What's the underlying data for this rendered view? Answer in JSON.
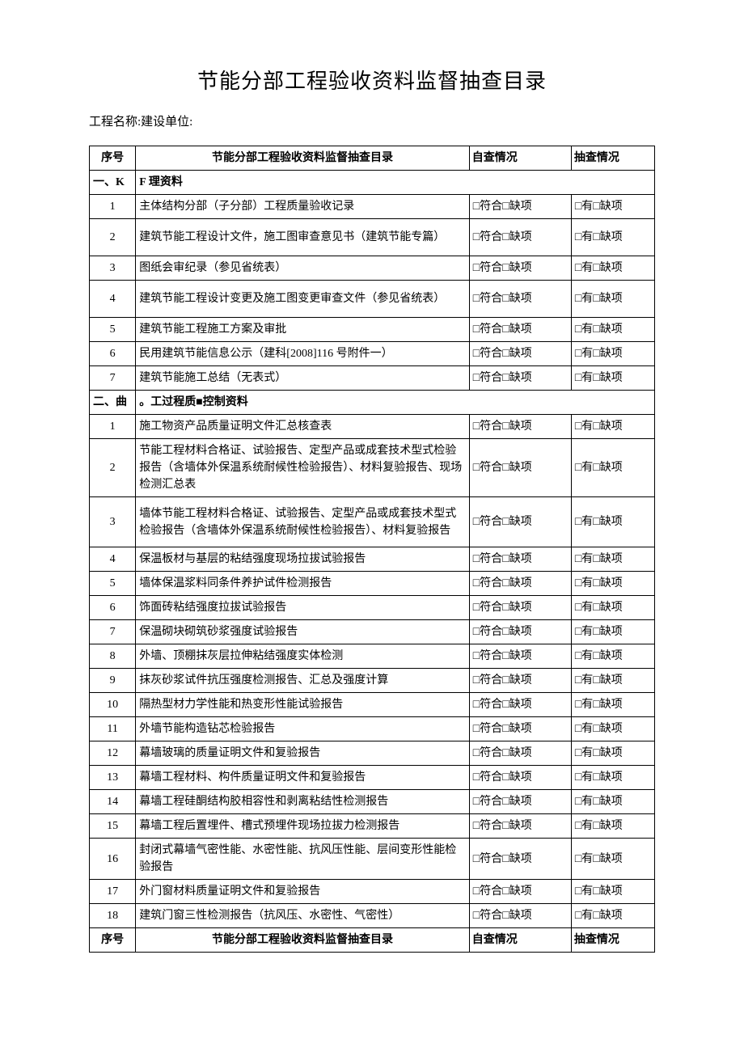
{
  "title": "节能分部工程验收资料监督抽查目录",
  "subtitle": "工程名称:建设单位:",
  "header": {
    "seq": "序号",
    "item": "节能分部工程验收资料监督抽查目录",
    "self": "自查情况",
    "spot": "抽查情况"
  },
  "self_text": "□符合□缺项",
  "spot_text": "□有□缺项",
  "section1": {
    "a": "一、K",
    "b": "F 理资料"
  },
  "section2": {
    "a": "二、曲",
    "b": "。工过程质■控制资料"
  },
  "s1_rows": [
    {
      "n": "1",
      "t": "主体结构分部（子分部）工程质量验收记录",
      "h": ""
    },
    {
      "n": "2",
      "t": "建筑节能工程设计文件，施工图审查意见书（建筑节能专篇）",
      "h": "tall"
    },
    {
      "n": "3",
      "t": "图纸会审纪录（参见省统表）",
      "h": ""
    },
    {
      "n": "4",
      "t": "建筑节能工程设计变更及施工图变更审查文件（参见省统表）",
      "h": "tall"
    },
    {
      "n": "5",
      "t": "建筑节能工程施工方案及审批",
      "h": ""
    },
    {
      "n": "6",
      "t": "民用建筑节能信息公示（建科[2008]116 号附件一）",
      "h": ""
    },
    {
      "n": "7",
      "t": "建筑节能施工总结（无表式）",
      "h": ""
    }
  ],
  "s2_rows": [
    {
      "n": "1",
      "t": "施工物资产品质量证明文件汇总核查表",
      "h": ""
    },
    {
      "n": "2",
      "t": "节能工程材料合格证、试验报告、定型产品或成套技术型式检验报告（含墙体外保温系统耐候性检验报告）、材料复验报告、现场检测汇总表",
      "h": "vtall"
    },
    {
      "n": "3",
      "t": "墙体节能工程材料合格证、试验报告、定型产品或成套技术型式检验报告（含墙体外保温系统耐候性检验报告）、材料复验报告",
      "h": "vtall"
    },
    {
      "n": "4",
      "t": "保温板材与基层的粘结强度现场拉拔试验报告",
      "h": ""
    },
    {
      "n": "5",
      "t": "墙体保温浆料同条件养护试件检测报告",
      "h": ""
    },
    {
      "n": "6",
      "t": "饰面砖粘结强度拉拔试验报告",
      "h": ""
    },
    {
      "n": "7",
      "t": "保温砌块砌筑砂浆强度试验报告",
      "h": ""
    },
    {
      "n": "8",
      "t": "外墙、顶棚抹灰层拉伸粘结强度实体检测",
      "h": ""
    },
    {
      "n": "9",
      "t": "抹灰砂浆试件抗压强度检测报告、汇总及强度计算",
      "h": ""
    },
    {
      "n": "10",
      "t": "隔热型材力学性能和热变形性能试验报告",
      "h": ""
    },
    {
      "n": "11",
      "t": "外墙节能构造钻芯检验报告",
      "h": ""
    },
    {
      "n": "12",
      "t": "幕墙玻璃的质量证明文件和复验报告",
      "h": ""
    },
    {
      "n": "13",
      "t": "幕墙工程材料、构件质量证明文件和复验报告",
      "h": ""
    },
    {
      "n": "14",
      "t": "幕墙工程硅酮结构胶相容性和剥离粘结性检测报告",
      "h": ""
    },
    {
      "n": "15",
      "t": "幕墙工程后置埋件、槽式预埋件现场拉拔力检测报告",
      "h": ""
    },
    {
      "n": "16",
      "t": "封闭式幕墙气密性能、水密性能、抗风压性能、层间变形性能检验报告",
      "h": "tall"
    },
    {
      "n": "17",
      "t": "外门窗材料质量证明文件和复验报告",
      "h": ""
    },
    {
      "n": "18",
      "t": "建筑门窗三性检测报告（抗风压、水密性、气密性）",
      "h": ""
    }
  ]
}
